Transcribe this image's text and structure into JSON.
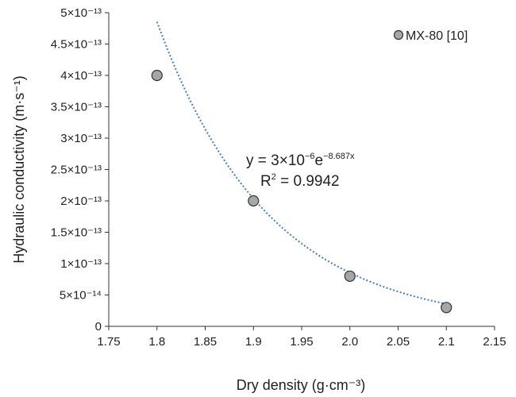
{
  "chart_data": {
    "type": "scatter",
    "title": "",
    "xlabel": "Dry density (g·cm⁻³)",
    "ylabel": "Hydraulic conductivity (m·s⁻¹)",
    "xlim": [
      1.75,
      2.15
    ],
    "ylim": [
      0,
      5e-13
    ],
    "x_ticks": [
      "1.75",
      "1.8",
      "1.85",
      "1.9",
      "1.95",
      "2.0",
      "2.05",
      "2.1",
      "2.15"
    ],
    "y_ticks": [
      {
        "value": 0,
        "label": "0"
      },
      {
        "value": 5e-14,
        "label": "5×10⁻¹⁴"
      },
      {
        "value": 1e-13,
        "label": "1×10⁻¹³"
      },
      {
        "value": 1.5e-13,
        "label": "1.5×10⁻¹³"
      },
      {
        "value": 2e-13,
        "label": "2×10⁻¹³"
      },
      {
        "value": 2.5e-13,
        "label": "2.5×10⁻¹³"
      },
      {
        "value": 3e-13,
        "label": "3×10⁻¹³"
      },
      {
        "value": 3.5e-13,
        "label": "3.5×10⁻¹³"
      },
      {
        "value": 4e-13,
        "label": "4×10⁻¹³"
      },
      {
        "value": 4.5e-13,
        "label": "4.5×10⁻¹³"
      },
      {
        "value": 5e-13,
        "label": "5×10⁻¹³"
      }
    ],
    "grid": false,
    "legend_position": "top-right",
    "series": [
      {
        "name": "MX-80 [10]",
        "marker": "circle",
        "color": "#a6a6a6",
        "x": [
          1.8,
          1.9,
          2.0,
          2.1
        ],
        "y": [
          4e-13,
          2e-13,
          8e-14,
          3e-14
        ]
      }
    ],
    "trendline": {
      "type": "exponential",
      "coef_a": 3e-06,
      "coef_b": -8.687,
      "x_range": [
        1.8,
        2.1
      ],
      "color": "#3f7fc4",
      "equation_text": "y = 3×10⁻⁶e⁻⁸·⁶⁸⁷ˣ",
      "equation_base": "y = 3×10",
      "equation_exp1": "−6",
      "equation_mid": "e",
      "equation_exp2": "−8.687x",
      "r2_text": "R² = 0.9942",
      "r2_base": "R",
      "r2_sup": "2",
      "r2_rest": " = 0.9942"
    }
  }
}
